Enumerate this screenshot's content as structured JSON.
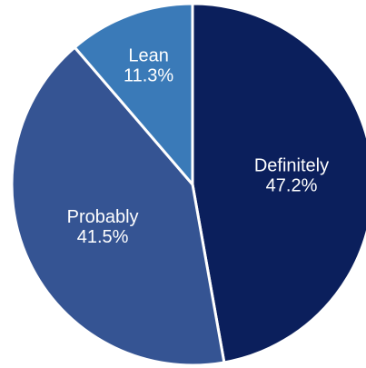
{
  "chart_data": {
    "type": "pie",
    "title": "",
    "start_angle_deg": 0,
    "direction": "clockwise",
    "legend": "none",
    "slices": [
      {
        "label": "Definitely",
        "value": 47.2,
        "value_label": "47.2%",
        "color": "#0b1f5c"
      },
      {
        "label": "Probably",
        "value": 41.5,
        "value_label": "41.5%",
        "color": "#355493"
      },
      {
        "label": "Lean",
        "value": 11.3,
        "value_label": "11.3%",
        "color": "#3a7ab8"
      }
    ]
  }
}
